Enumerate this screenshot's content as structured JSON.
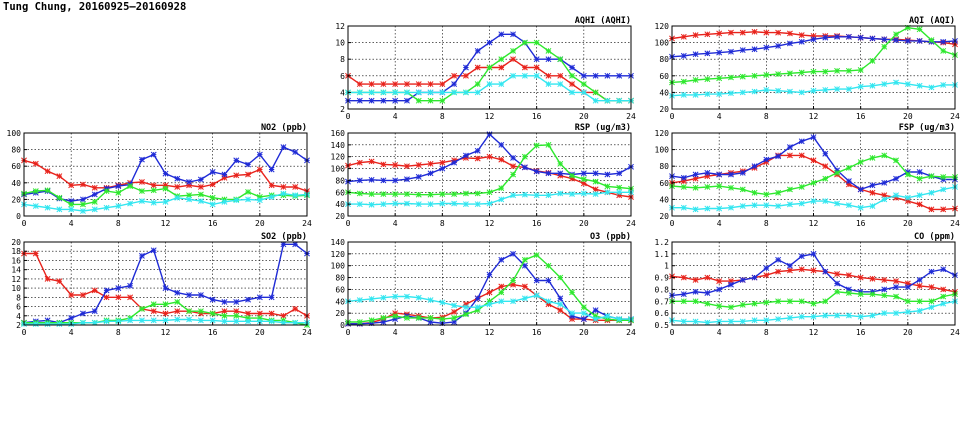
{
  "page_title": "Tung Chung, 20160925–20160928",
  "colors": {
    "red": "#e8231c",
    "blue": "#1f2bd6",
    "green": "#2ee82e",
    "cyan": "#33e6f0",
    "grid": "#000000"
  },
  "chart_data": [
    {
      "type": "line",
      "title": "AQHI (AQHI)",
      "xlim": [
        0,
        24
      ],
      "xticks": [
        0,
        4,
        8,
        12,
        16,
        20,
        24
      ],
      "ylim": [
        2,
        12
      ],
      "yticks": [
        2,
        4,
        6,
        8,
        10,
        12
      ],
      "series": [
        {
          "color": "red",
          "values": [
            6,
            5,
            5,
            5,
            5,
            5,
            5,
            5,
            5,
            6,
            6,
            7,
            7,
            7,
            8,
            7,
            7,
            6,
            6,
            5,
            4,
            4,
            3,
            3,
            3
          ]
        },
        {
          "color": "blue",
          "values": [
            3,
            3,
            3,
            3,
            3,
            3,
            4,
            4,
            4,
            5,
            7,
            9,
            10,
            11,
            11,
            10,
            8,
            8,
            8,
            7,
            6,
            6,
            6,
            6,
            6
          ]
        },
        {
          "color": "green",
          "values": [
            4,
            4,
            4,
            4,
            4,
            4,
            3,
            3,
            3,
            4,
            4,
            5,
            7,
            8,
            9,
            10,
            10,
            9,
            8,
            6,
            5,
            4,
            3,
            3,
            3
          ]
        },
        {
          "color": "cyan",
          "values": [
            4,
            4,
            4,
            4,
            4,
            4,
            4,
            4,
            4,
            4,
            4,
            4,
            5,
            5,
            6,
            6,
            6,
            5,
            5,
            4,
            4,
            3,
            3,
            3,
            3
          ]
        }
      ]
    },
    {
      "type": "line",
      "title": "AQI (AQI)",
      "xlim": [
        0,
        24
      ],
      "xticks": [
        0,
        4,
        8,
        12,
        16,
        20,
        24
      ],
      "ylim": [
        20,
        120
      ],
      "yticks": [
        20,
        40,
        60,
        80,
        100,
        120
      ],
      "series": [
        {
          "color": "red",
          "values": [
            105,
            107,
            109,
            110,
            111,
            112,
            112,
            113,
            112,
            112,
            111,
            109,
            108,
            108,
            108,
            107,
            106,
            105,
            104,
            104,
            103,
            102,
            101,
            100,
            98
          ]
        },
        {
          "color": "blue",
          "values": [
            83,
            84,
            86,
            87,
            88,
            89,
            91,
            92,
            94,
            96,
            99,
            101,
            104,
            106,
            107,
            107,
            106,
            105,
            104,
            103,
            102,
            102,
            101,
            101,
            102
          ]
        },
        {
          "color": "green",
          "values": [
            52,
            53,
            55,
            56,
            57,
            58,
            59,
            60,
            61,
            62,
            63,
            64,
            65,
            65,
            66,
            66,
            67,
            78,
            95,
            110,
            118,
            116,
            103,
            90,
            85
          ]
        },
        {
          "color": "cyan",
          "values": [
            36,
            37,
            37,
            38,
            38,
            39,
            40,
            41,
            43,
            42,
            41,
            40,
            42,
            43,
            44,
            44,
            47,
            48,
            50,
            52,
            50,
            48,
            46,
            49,
            49
          ]
        }
      ]
    },
    {
      "type": "line",
      "title": "NO2 (ppb)",
      "xlim": [
        0,
        24
      ],
      "xticks": [
        0,
        4,
        8,
        12,
        16,
        20,
        24
      ],
      "ylim": [
        0,
        100
      ],
      "yticks": [
        0,
        20,
        40,
        60,
        80,
        100
      ],
      "series": [
        {
          "color": "red",
          "values": [
            67,
            63,
            54,
            48,
            37,
            38,
            34,
            34,
            37,
            40,
            41,
            37,
            37,
            35,
            37,
            35,
            38,
            46,
            49,
            50,
            56,
            37,
            35,
            35,
            30
          ]
        },
        {
          "color": "blue",
          "values": [
            26,
            28,
            30,
            21,
            18,
            20,
            26,
            33,
            36,
            38,
            68,
            74,
            51,
            45,
            41,
            44,
            53,
            50,
            67,
            62,
            74,
            56,
            83,
            77,
            67
          ]
        },
        {
          "color": "green",
          "values": [
            27,
            30,
            31,
            22,
            14,
            14,
            17,
            30,
            28,
            36,
            30,
            31,
            33,
            24,
            25,
            26,
            22,
            20,
            20,
            29,
            23,
            25,
            25,
            24,
            25
          ]
        },
        {
          "color": "cyan",
          "values": [
            14,
            12,
            10,
            8,
            8,
            6,
            8,
            10,
            12,
            15,
            18,
            16,
            17,
            22,
            20,
            18,
            14,
            17,
            19,
            20,
            19,
            23,
            27,
            25,
            26
          ]
        }
      ]
    },
    {
      "type": "line",
      "title": "RSP (ug/m3)",
      "xlim": [
        0,
        24
      ],
      "xticks": [
        0,
        4,
        8,
        12,
        16,
        20,
        24
      ],
      "ylim": [
        20,
        160
      ],
      "yticks": [
        20,
        40,
        60,
        80,
        100,
        120,
        140,
        160
      ],
      "series": [
        {
          "color": "red",
          "values": [
            105,
            110,
            112,
            107,
            106,
            104,
            106,
            108,
            110,
            114,
            118,
            117,
            120,
            115,
            104,
            102,
            96,
            93,
            88,
            83,
            75,
            65,
            60,
            55,
            52
          ]
        },
        {
          "color": "blue",
          "values": [
            78,
            80,
            81,
            80,
            80,
            82,
            86,
            92,
            100,
            110,
            122,
            130,
            158,
            140,
            118,
            102,
            95,
            92,
            92,
            90,
            92,
            92,
            90,
            92,
            103
          ]
        },
        {
          "color": "green",
          "values": [
            60,
            58,
            57,
            57,
            57,
            57,
            56,
            56,
            57,
            57,
            58,
            58,
            60,
            67,
            90,
            120,
            139,
            140,
            108,
            88,
            82,
            78,
            70,
            68,
            66
          ]
        },
        {
          "color": "cyan",
          "values": [
            40,
            40,
            39,
            40,
            41,
            41,
            40,
            40,
            41,
            41,
            40,
            40,
            41,
            48,
            55,
            56,
            55,
            55,
            58,
            57,
            58,
            57,
            60,
            60,
            60
          ]
        }
      ]
    },
    {
      "type": "line",
      "title": "FSP (ug/m3)",
      "xlim": [
        0,
        24
      ],
      "xticks": [
        0,
        4,
        8,
        12,
        16,
        20,
        24
      ],
      "ylim": [
        20,
        120
      ],
      "yticks": [
        20,
        40,
        60,
        80,
        100,
        120
      ],
      "series": [
        {
          "color": "red",
          "values": [
            60,
            62,
            65,
            68,
            70,
            72,
            74,
            78,
            85,
            93,
            93,
            93,
            87,
            80,
            70,
            58,
            52,
            48,
            45,
            42,
            38,
            34,
            28,
            28,
            29
          ]
        },
        {
          "color": "blue",
          "values": [
            68,
            66,
            70,
            72,
            70,
            70,
            72,
            80,
            88,
            92,
            103,
            110,
            115,
            95,
            75,
            62,
            52,
            57,
            60,
            65,
            73,
            73,
            68,
            64,
            64
          ]
        },
        {
          "color": "green",
          "values": [
            56,
            55,
            54,
            55,
            56,
            54,
            52,
            48,
            46,
            48,
            52,
            55,
            60,
            65,
            72,
            78,
            85,
            90,
            93,
            87,
            70,
            65,
            68,
            67,
            67
          ]
        },
        {
          "color": "cyan",
          "values": [
            30,
            30,
            28,
            29,
            29,
            30,
            32,
            33,
            33,
            32,
            34,
            35,
            38,
            38,
            35,
            33,
            30,
            32,
            40,
            45,
            42,
            45,
            48,
            52,
            55
          ]
        }
      ]
    },
    {
      "type": "line",
      "title": "SO2 (ppb)",
      "xlim": [
        0,
        24
      ],
      "xticks": [
        0,
        4,
        8,
        12,
        16,
        20,
        24
      ],
      "ylim": [
        2,
        20
      ],
      "yticks": [
        2,
        4,
        6,
        8,
        10,
        12,
        14,
        16,
        18,
        20
      ],
      "series": [
        {
          "color": "red",
          "values": [
            17.5,
            17.5,
            12,
            11.5,
            8.5,
            8.5,
            9.5,
            8,
            8,
            8,
            5.5,
            5,
            4.5,
            5,
            5,
            4.5,
            4.5,
            5,
            5,
            4.5,
            4.5,
            4.5,
            4,
            5.5,
            4
          ]
        },
        {
          "color": "blue",
          "values": [
            2.5,
            2.8,
            3,
            2.5,
            3.5,
            4.5,
            5,
            9.5,
            10,
            10.5,
            17,
            18.2,
            10,
            9,
            8.5,
            8.5,
            7.5,
            7,
            7,
            7.5,
            8,
            8,
            19.5,
            19.5,
            17.5
          ]
        },
        {
          "color": "green",
          "values": [
            2.5,
            2.5,
            2.5,
            2.5,
            2.5,
            2.5,
            2.5,
            3,
            3,
            3.5,
            5.5,
            6.5,
            6.5,
            7,
            5,
            5,
            4.5,
            4,
            4,
            3.5,
            3.5,
            3,
            3,
            2.5,
            2
          ]
        },
        {
          "color": "cyan",
          "values": [
            2.2,
            2.2,
            2.2,
            2.2,
            2.2,
            2.5,
            2.5,
            2.8,
            2.8,
            3,
            3,
            3,
            3,
            3.2,
            3.2,
            3,
            3,
            2.8,
            2.8,
            2.8,
            2.8,
            2.8,
            2.5,
            2.5,
            2.5
          ]
        }
      ]
    },
    {
      "type": "line",
      "title": "O3 (ppb)",
      "xlim": [
        0,
        24
      ],
      "xticks": [
        0,
        4,
        8,
        12,
        16,
        20,
        24
      ],
      "ylim": [
        0,
        140
      ],
      "yticks": [
        0,
        20,
        40,
        60,
        80,
        100,
        120,
        140
      ],
      "series": [
        {
          "color": "red",
          "values": [
            2,
            2,
            4,
            10,
            20,
            18,
            15,
            12,
            13,
            22,
            35,
            45,
            55,
            65,
            68,
            65,
            50,
            35,
            25,
            10,
            10,
            8,
            8,
            8,
            8
          ]
        },
        {
          "color": "blue",
          "values": [
            2,
            2,
            3,
            5,
            10,
            15,
            12,
            5,
            3,
            5,
            20,
            45,
            85,
            110,
            120,
            100,
            75,
            75,
            45,
            15,
            10,
            25,
            15,
            10,
            10
          ]
        },
        {
          "color": "green",
          "values": [
            5,
            5,
            8,
            12,
            15,
            12,
            12,
            12,
            10,
            12,
            18,
            25,
            40,
            55,
            75,
            110,
            118,
            100,
            80,
            55,
            30,
            15,
            10,
            8,
            8
          ]
        },
        {
          "color": "cyan",
          "values": [
            40,
            42,
            44,
            46,
            48,
            48,
            46,
            42,
            38,
            33,
            30,
            30,
            35,
            40,
            40,
            45,
            50,
            40,
            35,
            20,
            20,
            10,
            15,
            10,
            10
          ]
        }
      ]
    },
    {
      "type": "line",
      "title": "CO (ppm)",
      "xlim": [
        0,
        24
      ],
      "xticks": [
        0,
        4,
        8,
        12,
        16,
        20,
        24
      ],
      "ylim": [
        0.5,
        1.2
      ],
      "yticks": [
        0.5,
        0.6,
        0.7,
        0.8,
        0.9,
        1.0,
        1.1,
        1.2
      ],
      "ytick_labels": [
        "0.5",
        "0.6",
        "0.7",
        "0.8",
        "0.9",
        "1",
        "1.1",
        "1.2"
      ],
      "series": [
        {
          "color": "red",
          "values": [
            0.91,
            0.9,
            0.88,
            0.9,
            0.87,
            0.87,
            0.88,
            0.9,
            0.92,
            0.95,
            0.96,
            0.97,
            0.96,
            0.95,
            0.93,
            0.92,
            0.9,
            0.89,
            0.88,
            0.87,
            0.85,
            0.83,
            0.82,
            0.8,
            0.78
          ]
        },
        {
          "color": "blue",
          "values": [
            0.75,
            0.76,
            0.78,
            0.77,
            0.8,
            0.84,
            0.88,
            0.9,
            0.98,
            1.05,
            1.0,
            1.08,
            1.1,
            0.95,
            0.85,
            0.8,
            0.78,
            0.78,
            0.8,
            0.82,
            0.82,
            0.88,
            0.95,
            0.97,
            0.92
          ]
        },
        {
          "color": "green",
          "values": [
            0.7,
            0.7,
            0.7,
            0.68,
            0.66,
            0.65,
            0.67,
            0.68,
            0.69,
            0.7,
            0.7,
            0.7,
            0.68,
            0.7,
            0.78,
            0.77,
            0.76,
            0.76,
            0.75,
            0.74,
            0.7,
            0.7,
            0.7,
            0.74,
            0.76
          ]
        },
        {
          "color": "cyan",
          "values": [
            0.54,
            0.53,
            0.53,
            0.52,
            0.53,
            0.53,
            0.53,
            0.54,
            0.54,
            0.55,
            0.56,
            0.57,
            0.57,
            0.58,
            0.58,
            0.58,
            0.57,
            0.58,
            0.6,
            0.6,
            0.61,
            0.62,
            0.65,
            0.68,
            0.7
          ]
        }
      ]
    }
  ]
}
